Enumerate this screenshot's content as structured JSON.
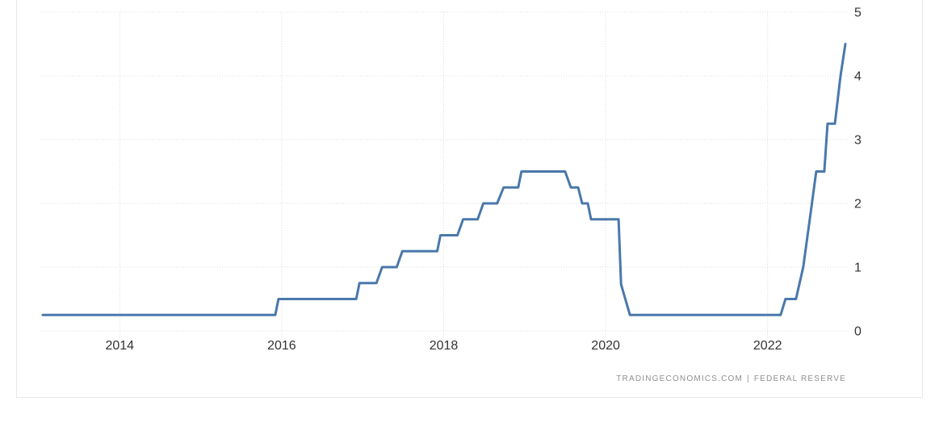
{
  "card": {
    "background": "#ffffff",
    "border_color": "#e9e9e9"
  },
  "chart_data": {
    "type": "line",
    "title": "",
    "xlabel": "",
    "ylabel": "",
    "xlim": [
      2013.02,
      2022.99
    ],
    "ylim": [
      0,
      5
    ],
    "y_axis_side": "right",
    "grid": "dotted",
    "grid_color": "#dcdcdc",
    "tick_label_color": "#333333",
    "x_ticks": [
      {
        "label": "2014",
        "value": 2014
      },
      {
        "label": "2016",
        "value": 2016
      },
      {
        "label": "2018",
        "value": 2018
      },
      {
        "label": "2020",
        "value": 2020
      },
      {
        "label": "2022",
        "value": 2022
      }
    ],
    "y_ticks": [
      {
        "label": "0",
        "value": 0
      },
      {
        "label": "1",
        "value": 1
      },
      {
        "label": "2",
        "value": 2
      },
      {
        "label": "3",
        "value": 3
      },
      {
        "label": "4",
        "value": 4
      },
      {
        "label": "5",
        "value": 5
      }
    ],
    "series": [
      {
        "color": "#4a78ab",
        "line_width": 3,
        "points": [
          [
            2013.05,
            0.25
          ],
          [
            2015.92,
            0.25
          ],
          [
            2015.96,
            0.5
          ],
          [
            2016.92,
            0.5
          ],
          [
            2016.96,
            0.75
          ],
          [
            2017.17,
            0.75
          ],
          [
            2017.24,
            1.0
          ],
          [
            2017.42,
            1.0
          ],
          [
            2017.49,
            1.25
          ],
          [
            2017.92,
            1.25
          ],
          [
            2017.96,
            1.5
          ],
          [
            2018.17,
            1.5
          ],
          [
            2018.24,
            1.75
          ],
          [
            2018.42,
            1.75
          ],
          [
            2018.49,
            2.0
          ],
          [
            2018.66,
            2.0
          ],
          [
            2018.74,
            2.25
          ],
          [
            2018.92,
            2.25
          ],
          [
            2018.96,
            2.5
          ],
          [
            2019.5,
            2.5
          ],
          [
            2019.57,
            2.25
          ],
          [
            2019.66,
            2.25
          ],
          [
            2019.71,
            2.0
          ],
          [
            2019.78,
            2.0
          ],
          [
            2019.82,
            1.75
          ],
          [
            2020.16,
            1.75
          ],
          [
            2020.19,
            0.73
          ],
          [
            2020.3,
            0.25
          ],
          [
            2022.16,
            0.25
          ],
          [
            2022.22,
            0.5
          ],
          [
            2022.35,
            0.5
          ],
          [
            2022.44,
            1.0
          ],
          [
            2022.52,
            1.75
          ],
          [
            2022.6,
            2.5
          ],
          [
            2022.7,
            2.5
          ],
          [
            2022.74,
            3.25
          ],
          [
            2022.83,
            3.25
          ],
          [
            2022.9,
            4.0
          ],
          [
            2022.96,
            4.5
          ]
        ]
      }
    ]
  },
  "attribution": {
    "source": "TRADINGECONOMICS.COM",
    "separator": "|",
    "provider": "FEDERAL RESERVE",
    "color": "#8f8f8f"
  }
}
